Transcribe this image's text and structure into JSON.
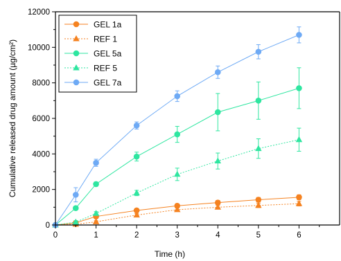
{
  "chart_data": {
    "type": "line",
    "xlabel": "Time (h)",
    "ylabel": "Cumulative released drug amount (µg/cm²)",
    "xlim": [
      0,
      7
    ],
    "ylim": [
      0,
      12000
    ],
    "xticks": [
      0,
      1,
      2,
      3,
      4,
      5,
      6
    ],
    "xtick_labels": [
      "0",
      "1",
      "2",
      "3",
      "4",
      "5",
      "6"
    ],
    "yticks": [
      0,
      2000,
      4000,
      6000,
      8000,
      10000,
      12000
    ],
    "ytick_labels": [
      "0",
      "2000",
      "4000",
      "6000",
      "8000",
      "10000",
      "12000"
    ],
    "grid": false,
    "legend_position": "top-left",
    "series": [
      {
        "name": "GEL 1a",
        "color": "#f58220",
        "marker": "circle",
        "line": "solid",
        "x": [
          0,
          0.5,
          1,
          2,
          3,
          4,
          5,
          6
        ],
        "y": [
          0,
          120,
          480,
          820,
          1080,
          1260,
          1420,
          1560
        ],
        "err": [
          0,
          60,
          80,
          100,
          110,
          120,
          130,
          140
        ]
      },
      {
        "name": "REF 1",
        "color": "#f58220",
        "marker": "triangle",
        "line": "dotted",
        "x": [
          0,
          0.5,
          1,
          2,
          3,
          4,
          5,
          6
        ],
        "y": [
          0,
          40,
          180,
          560,
          860,
          1000,
          1100,
          1200
        ],
        "err": [
          0,
          30,
          60,
          90,
          100,
          110,
          120,
          130
        ]
      },
      {
        "name": "GEL 5a",
        "color": "#2ee6a0",
        "marker": "circle",
        "line": "solid",
        "x": [
          0,
          0.5,
          1,
          2,
          3,
          4,
          5,
          6
        ],
        "y": [
          0,
          950,
          2300,
          3850,
          5100,
          6350,
          7000,
          7700
        ],
        "err": [
          0,
          100,
          120,
          250,
          450,
          1050,
          1050,
          1150
        ]
      },
      {
        "name": "REF 5",
        "color": "#2ee6a0",
        "marker": "triangle",
        "line": "dotted",
        "x": [
          0,
          0.5,
          1,
          2,
          3,
          4,
          5,
          6
        ],
        "y": [
          0,
          160,
          650,
          1800,
          2850,
          3600,
          4300,
          4800
        ],
        "err": [
          0,
          80,
          100,
          150,
          350,
          450,
          550,
          650
        ]
      },
      {
        "name": "GEL 7a",
        "color": "#6eaaf5",
        "marker": "circle",
        "line": "solid",
        "x": [
          0,
          0.5,
          1,
          2,
          3,
          4,
          5,
          6
        ],
        "y": [
          0,
          1700,
          3500,
          5600,
          7250,
          8600,
          9750,
          10700
        ],
        "err": [
          0,
          400,
          200,
          200,
          300,
          350,
          400,
          450
        ]
      }
    ]
  }
}
